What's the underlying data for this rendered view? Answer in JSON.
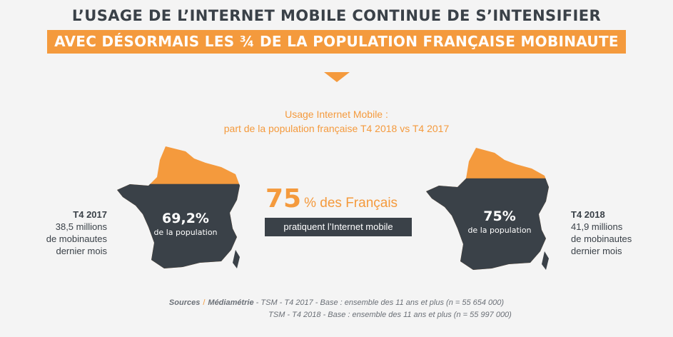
{
  "header": {
    "title_line1": "L’USAGE DE L’INTERNET MOBILE CONTINUE DE S’INTENSIFIER",
    "title_line2": "AVEC DÉSORMAIS LES ¾ DE LA POPULATION FRANÇAISE MOBINAUTE"
  },
  "subtitle": {
    "line1": "Usage Internet Mobile :",
    "line2": "part de la population française T4 2018 vs T4 2017"
  },
  "left": {
    "label": "T4 2017",
    "line1": "38,5 millions",
    "line2": "de mobinautes",
    "line3": "dernier mois",
    "pct": "69,2%",
    "pct_caption": "de la population",
    "fill_fraction": 0.692
  },
  "right": {
    "label": "T4 2018",
    "line1": "41,9 millions",
    "line2": "de mobinautes",
    "line3": "dernier mois",
    "pct": "75%",
    "pct_caption": "de la population",
    "fill_fraction": 0.75
  },
  "center": {
    "big_number": "75",
    "big_text": "% des Français",
    "badge": "pratiquent l’Internet mobile"
  },
  "sources": {
    "label": "Sources",
    "org": "Médiamétrie",
    "line1": "- TSM - T4 2017 - Base : ensemble des 11 ans et plus (n = 55 654 000)",
    "line2": "TSM - T4 2018 - Base : ensemble des 11 ans et plus (n = 55 997 000)"
  },
  "colors": {
    "orange": "#f49a3d",
    "dark": "#3a4148",
    "background": "#f4f4f4"
  }
}
